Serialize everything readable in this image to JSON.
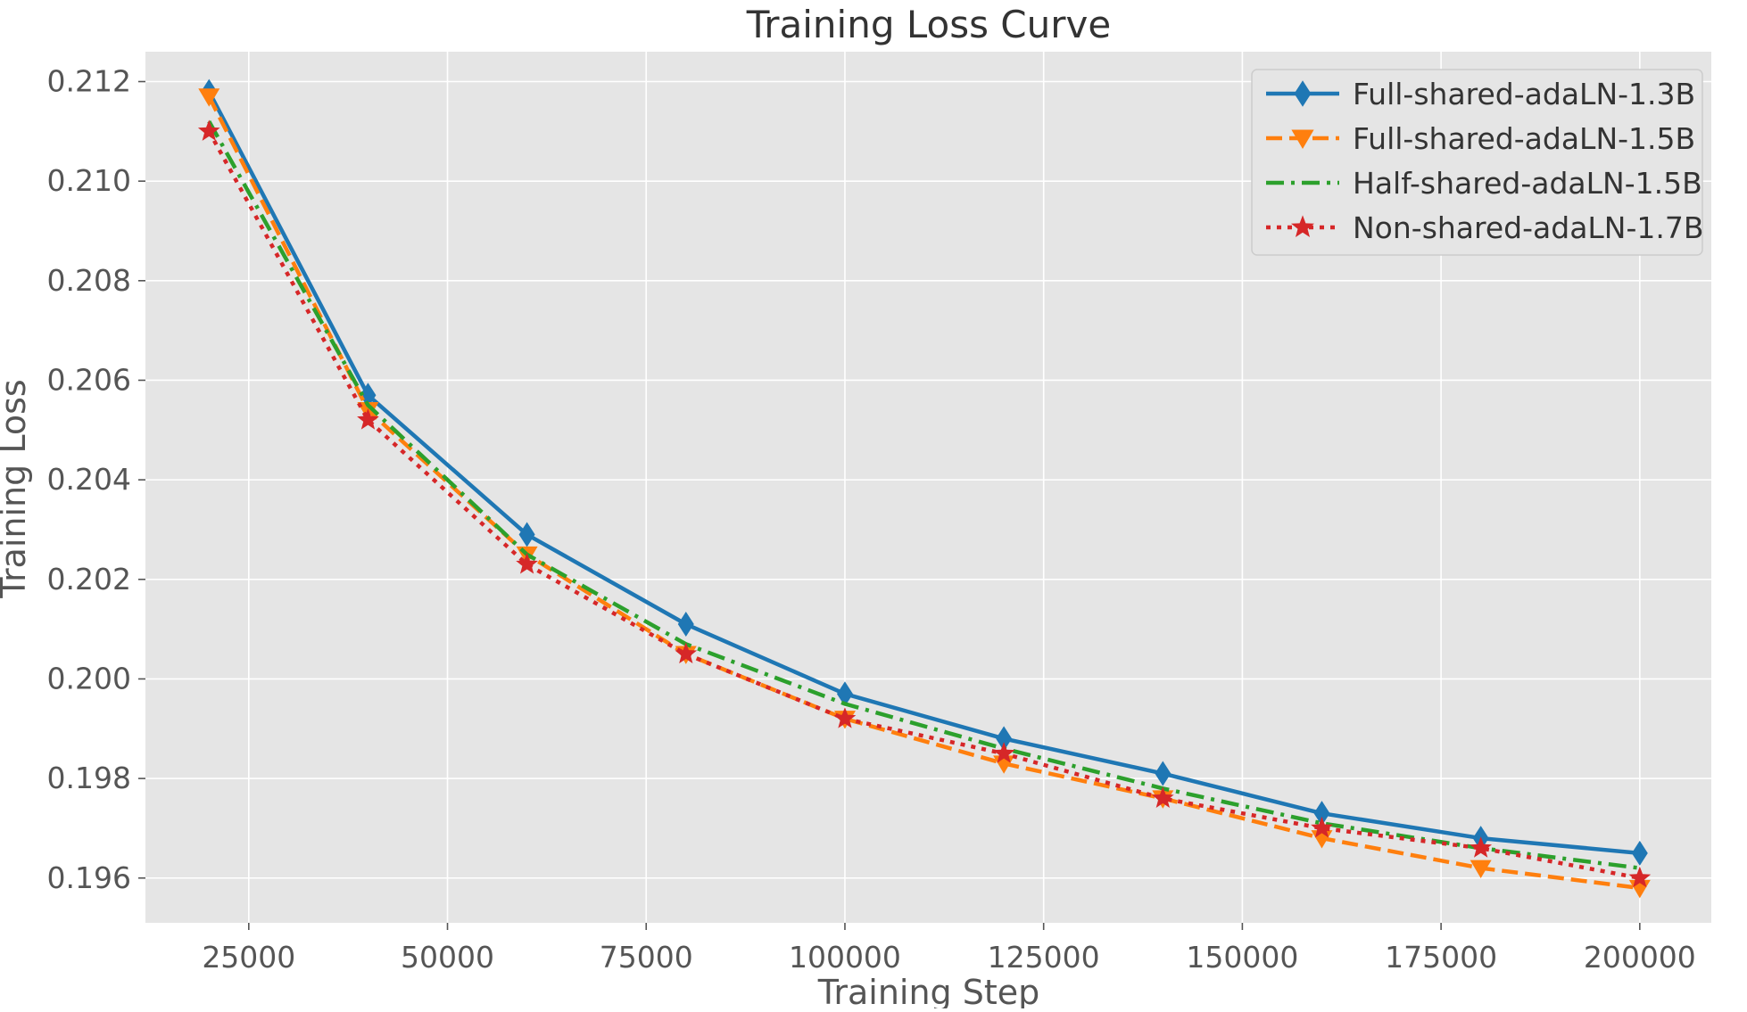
{
  "chart_data": {
    "type": "line",
    "title": "Training Loss Curve",
    "xlabel": "Training Step",
    "ylabel": "Training Loss",
    "xlim": [
      12000,
      209000
    ],
    "ylim": [
      0.1951,
      0.2126
    ],
    "grid": true,
    "legend_position": "top-right",
    "x_ticks": [
      25000,
      50000,
      75000,
      100000,
      125000,
      150000,
      175000,
      200000
    ],
    "x_tick_labels": [
      "25000",
      "50000",
      "75000",
      "100000",
      "125000",
      "150000",
      "175000",
      "200000"
    ],
    "y_ticks": [
      0.196,
      0.198,
      0.2,
      0.202,
      0.204,
      0.206,
      0.208,
      0.21,
      0.212
    ],
    "y_tick_labels": [
      "0.196",
      "0.198",
      "0.200",
      "0.202",
      "0.204",
      "0.206",
      "0.208",
      "0.210",
      "0.212"
    ],
    "x": [
      20000,
      40000,
      60000,
      80000,
      100000,
      120000,
      140000,
      160000,
      180000,
      200000
    ],
    "series": [
      {
        "name": "Full-shared-adaLN-1.3B",
        "color": "#1f77b4",
        "line_style": "solid",
        "marker": "thin-diamond",
        "values": [
          0.2118,
          0.2057,
          0.2029,
          0.2011,
          0.1997,
          0.1988,
          0.1981,
          0.1973,
          0.1968,
          0.1965
        ]
      },
      {
        "name": "Full-shared-adaLN-1.5B",
        "color": "#ff7f0e",
        "line_style": "dashed",
        "marker": "triangle-down",
        "values": [
          0.2117,
          0.2054,
          0.2025,
          0.2005,
          0.1992,
          0.1983,
          0.1976,
          0.1968,
          0.1962,
          0.1958
        ]
      },
      {
        "name": "Half-shared-adaLN-1.5B",
        "color": "#2ca02c",
        "line_style": "dashdot",
        "marker": "none",
        "values": [
          0.2112,
          0.2055,
          0.2025,
          0.2007,
          0.1995,
          0.1986,
          0.1978,
          0.1971,
          0.1966,
          0.1962
        ]
      },
      {
        "name": "Non-shared-adaLN-1.7B",
        "color": "#d62728",
        "line_style": "dotted",
        "marker": "star",
        "values": [
          0.211,
          0.2052,
          0.2023,
          0.2005,
          0.1992,
          0.1985,
          0.1976,
          0.197,
          0.1966,
          0.196
        ]
      }
    ]
  }
}
